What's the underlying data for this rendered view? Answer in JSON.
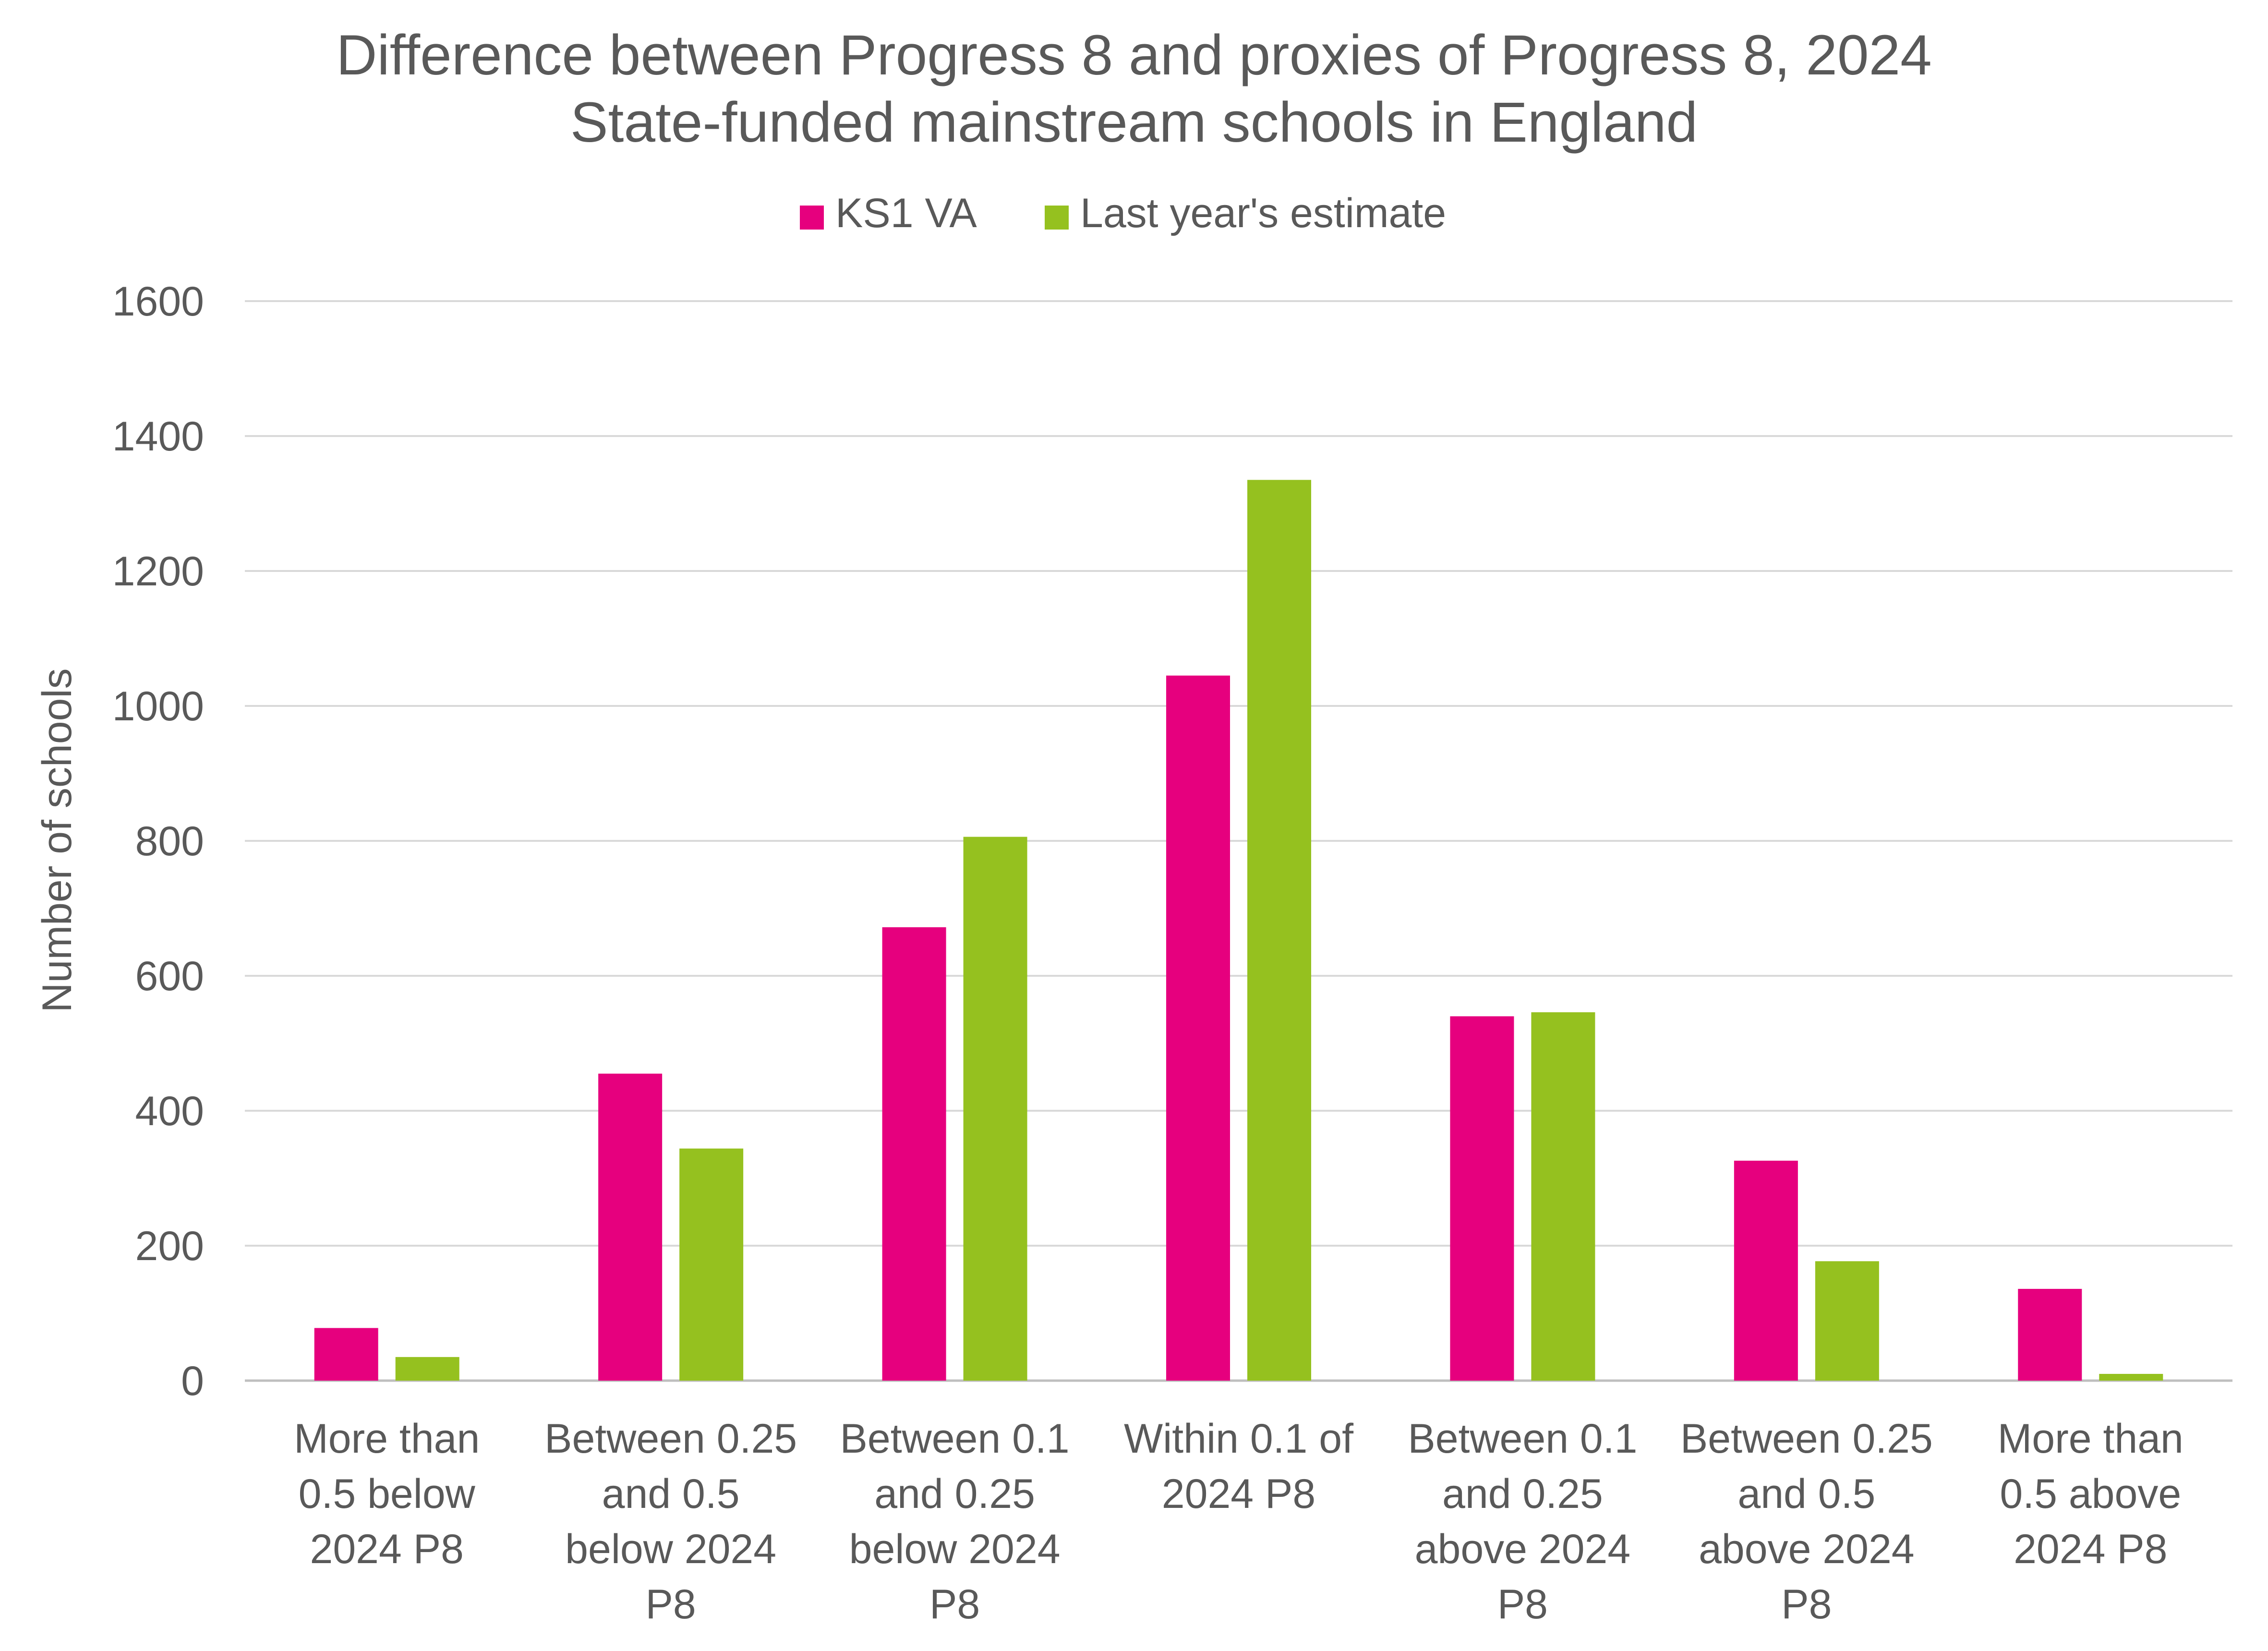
{
  "chart_data": {
    "type": "bar",
    "title": "Difference between Progress 8 and proxies of Progress 8, 2024",
    "subtitle": "State-funded mainstream schools in England",
    "ylabel": "Number of schools",
    "xlabel": "",
    "ylim": [
      0,
      1600
    ],
    "yticks": [
      0,
      200,
      400,
      600,
      800,
      1000,
      1200,
      1400,
      1600
    ],
    "grid": true,
    "legend_position": "top",
    "categories": [
      [
        "More than",
        "0.5 below",
        "2024 P8"
      ],
      [
        "Between 0.25",
        "and 0.5",
        "below 2024",
        "P8"
      ],
      [
        "Between 0.1",
        "and 0.25",
        "below 2024",
        "P8"
      ],
      [
        "Within 0.1 of",
        "2024 P8"
      ],
      [
        "Between 0.1",
        "and 0.25",
        "above 2024",
        "P8"
      ],
      [
        "Between 0.25",
        "and 0.5",
        "above 2024",
        "P8"
      ],
      [
        "More than",
        "0.5 above",
        "2024 P8"
      ]
    ],
    "series": [
      {
        "name": "KS1 VA",
        "color": "#E6007E",
        "values": [
          78,
          455,
          672,
          1045,
          540,
          326,
          136
        ]
      },
      {
        "name": "Last year's estimate",
        "color": "#95C11F",
        "values": [
          35,
          344,
          806,
          1335,
          546,
          177,
          10
        ]
      }
    ]
  }
}
